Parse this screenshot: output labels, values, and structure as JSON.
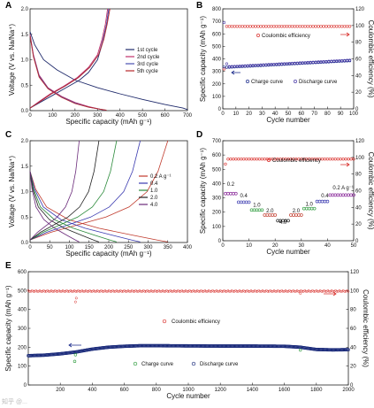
{
  "panels": {
    "A": "A",
    "B": "B",
    "C": "C",
    "D": "D",
    "E": "E"
  },
  "watermark": "知乎 @...",
  "chart_data": [
    {
      "panel": "A",
      "type": "line",
      "xlabel": "Specific capacity (mAh g⁻¹)",
      "ylabel": "Voltage (V vs. Na/Na⁺)",
      "xlim": [
        0,
        700
      ],
      "ylim": [
        0,
        2.0
      ],
      "xticks": [
        0,
        100,
        200,
        300,
        400,
        500,
        600,
        700
      ],
      "yticks": [
        0.0,
        0.5,
        1.0,
        1.5,
        2.0
      ],
      "legend_position": "right",
      "series": [
        {
          "name": "1st cycle",
          "color": "#1f2a6b",
          "discharge": [
            [
              0,
              1.55
            ],
            [
              20,
              1.3
            ],
            [
              60,
              1.0
            ],
            [
              120,
              0.8
            ],
            [
              200,
              0.6
            ],
            [
              300,
              0.45
            ],
            [
              400,
              0.33
            ],
            [
              500,
              0.22
            ],
            [
              600,
              0.12
            ],
            [
              680,
              0.05
            ],
            [
              700,
              0.02
            ]
          ],
          "charge": [
            [
              0,
              0.05
            ],
            [
              40,
              0.15
            ],
            [
              100,
              0.3
            ],
            [
              160,
              0.45
            ],
            [
              220,
              0.6
            ],
            [
              260,
              0.75
            ],
            [
              300,
              1.0
            ],
            [
              320,
              1.3
            ],
            [
              340,
              1.7
            ],
            [
              350,
              2.0
            ]
          ]
        },
        {
          "name": "2nd cycle",
          "color": "#c0306a",
          "discharge": [
            [
              0,
              1.5
            ],
            [
              15,
              1.1
            ],
            [
              40,
              0.7
            ],
            [
              80,
              0.45
            ],
            [
              140,
              0.28
            ],
            [
              200,
              0.16
            ],
            [
              260,
              0.08
            ],
            [
              300,
              0.04
            ],
            [
              330,
              0.01
            ]
          ],
          "charge": [
            [
              0,
              0.05
            ],
            [
              40,
              0.18
            ],
            [
              90,
              0.33
            ],
            [
              150,
              0.48
            ],
            [
              210,
              0.65
            ],
            [
              260,
              0.85
            ],
            [
              300,
              1.1
            ],
            [
              320,
              1.4
            ],
            [
              335,
              1.7
            ],
            [
              345,
              2.0
            ]
          ]
        },
        {
          "name": "3rd cycle",
          "color": "#4a4fb0",
          "discharge": [
            [
              0,
              1.48
            ],
            [
              15,
              1.08
            ],
            [
              40,
              0.68
            ],
            [
              80,
              0.44
            ],
            [
              140,
              0.27
            ],
            [
              200,
              0.15
            ],
            [
              260,
              0.07
            ],
            [
              310,
              0.03
            ],
            [
              335,
              0.01
            ]
          ],
          "charge": [
            [
              0,
              0.05
            ],
            [
              45,
              0.18
            ],
            [
              95,
              0.33
            ],
            [
              155,
              0.48
            ],
            [
              215,
              0.65
            ],
            [
              265,
              0.85
            ],
            [
              305,
              1.1
            ],
            [
              325,
              1.4
            ],
            [
              340,
              1.7
            ],
            [
              350,
              2.0
            ]
          ]
        },
        {
          "name": "5th cycle",
          "color": "#b8282c",
          "discharge": [
            [
              0,
              1.47
            ],
            [
              15,
              1.06
            ],
            [
              40,
              0.66
            ],
            [
              80,
              0.43
            ],
            [
              140,
              0.26
            ],
            [
              200,
              0.14
            ],
            [
              260,
              0.07
            ],
            [
              310,
              0.03
            ],
            [
              340,
              0.01
            ]
          ],
          "charge": [
            [
              0,
              0.05
            ],
            [
              45,
              0.18
            ],
            [
              95,
              0.33
            ],
            [
              155,
              0.48
            ],
            [
              215,
              0.65
            ],
            [
              265,
              0.85
            ],
            [
              305,
              1.1
            ],
            [
              328,
              1.4
            ],
            [
              343,
              1.7
            ],
            [
              355,
              2.0
            ]
          ]
        }
      ]
    },
    {
      "panel": "B",
      "type": "scatter",
      "xlabel": "Cycle number",
      "ylabel": "Specific capacity (mAh g⁻¹)",
      "ylabel2": "Coulombic efficiency (%)",
      "xlim": [
        0,
        100
      ],
      "ylim": [
        0,
        800
      ],
      "y2lim": [
        0,
        120
      ],
      "xticks": [
        0,
        10,
        20,
        30,
        40,
        50,
        60,
        70,
        80,
        90,
        100
      ],
      "yticks": [
        0,
        100,
        200,
        300,
        400,
        500,
        600,
        700,
        800
      ],
      "y2ticks": [
        0,
        20,
        40,
        60,
        80,
        100,
        120
      ],
      "annotations": [
        "Coulombic efficiency"
      ],
      "series": [
        {
          "name": "Coulombic efficiency",
          "axis": "right",
          "color": "#d9302c",
          "marker": "open-circle",
          "x_start": 1,
          "x_end": 98,
          "values_summary": {
            "first": 48,
            "rest": 99
          }
        },
        {
          "name": "Charge curve",
          "axis": "left",
          "color": "#1a2a8a",
          "marker": "open-circle",
          "x_start": 1,
          "x_end": 98,
          "values_summary": {
            "first": 335,
            "min": 330,
            "end": 385
          }
        },
        {
          "name": "Discharge curve",
          "axis": "left",
          "color": "#4a3aa8",
          "marker": "open-circle",
          "x_start": 1,
          "x_end": 98,
          "values_summary": {
            "first": 690,
            "second": 360,
            "min": 335,
            "end": 390
          }
        }
      ]
    },
    {
      "panel": "C",
      "type": "line",
      "xlabel": "Specific capacity (mAh g⁻¹)",
      "ylabel": "Voltage (V vs. Na/Na⁺)",
      "xlim": [
        0,
        400
      ],
      "ylim": [
        0,
        2.0
      ],
      "xticks": [
        0,
        50,
        100,
        150,
        200,
        250,
        300,
        350,
        400
      ],
      "yticks": [
        0.0,
        0.5,
        1.0,
        1.5,
        2.0
      ],
      "legend_position": "right",
      "series": [
        {
          "name": "0.2 A g⁻¹",
          "color": "#c03a2c",
          "capacity": 350
        },
        {
          "name": "0.4",
          "color": "#3a3ab0",
          "capacity": 280
        },
        {
          "name": "1.0",
          "color": "#2a8a3a",
          "capacity": 220
        },
        {
          "name": "2.0",
          "color": "#222222",
          "capacity": 175
        },
        {
          "name": "4.0",
          "color": "#6a2a7a",
          "capacity": 125
        }
      ]
    },
    {
      "panel": "D",
      "type": "scatter",
      "xlabel": "Cycle number",
      "ylabel": "Specific capacity (mAh g⁻¹)",
      "ylabel2": "Coulombic efficiency (%)",
      "xlim": [
        0,
        50
      ],
      "ylim": [
        0,
        700
      ],
      "y2lim": [
        0,
        120
      ],
      "xticks": [
        0,
        10,
        20,
        30,
        40,
        50
      ],
      "yticks": [
        0,
        100,
        200,
        300,
        400,
        500,
        600,
        700
      ],
      "y2ticks": [
        0,
        20,
        40,
        60,
        80,
        100,
        120
      ],
      "annotations": [
        "Coulombic efficiency"
      ],
      "rate_labels": [
        {
          "text": "0.2",
          "x": 3,
          "y": 385
        },
        {
          "text": "0.4",
          "x": 8,
          "y": 305
        },
        {
          "text": "1.0",
          "x": 13,
          "y": 238
        },
        {
          "text": "2.0",
          "x": 18,
          "y": 198
        },
        {
          "text": "4.0",
          "x": 23,
          "y": 118
        },
        {
          "text": "2.0",
          "x": 28,
          "y": 198
        },
        {
          "text": "1.0",
          "x": 33,
          "y": 245
        },
        {
          "text": "0.4",
          "x": 39,
          "y": 305
        },
        {
          "text": "0.2 A g⁻¹",
          "x": 46,
          "y": 360
        }
      ],
      "segments": [
        {
          "cycles": [
            1,
            5
          ],
          "capacity": 330,
          "color": "#8a2a9a"
        },
        {
          "cycles": [
            6,
            10
          ],
          "capacity": 270,
          "color": "#3a3ab0"
        },
        {
          "cycles": [
            11,
            15
          ],
          "capacity": 215,
          "color": "#2a9a3a"
        },
        {
          "cycles": [
            16,
            20
          ],
          "capacity": 180,
          "color": "#c03a2c"
        },
        {
          "cycles": [
            21,
            25
          ],
          "capacity": 140,
          "color": "#222222"
        },
        {
          "cycles": [
            26,
            30
          ],
          "capacity": 180,
          "color": "#c03a2c"
        },
        {
          "cycles": [
            31,
            35
          ],
          "capacity": 225,
          "color": "#2a9a3a"
        },
        {
          "cycles": [
            36,
            40
          ],
          "capacity": 275,
          "color": "#3a3ab0"
        },
        {
          "cycles": [
            41,
            50
          ],
          "capacity": 320,
          "color": "#8a2a9a"
        }
      ],
      "coulombic": {
        "first": 92,
        "rest": 98,
        "color": "#d9302c"
      }
    },
    {
      "panel": "E",
      "type": "scatter",
      "xlabel": "Cycle number",
      "ylabel": "Specific capacity (mAh g⁻¹)",
      "ylabel2": "Coulombic efficiency (%)",
      "xlim": [
        0,
        2000
      ],
      "ylim": [
        0,
        600
      ],
      "y2lim": [
        0,
        120
      ],
      "xticks": [
        200,
        400,
        600,
        800,
        1000,
        1200,
        1400,
        1600,
        1800,
        2000
      ],
      "yticks": [
        0,
        100,
        200,
        300,
        400,
        500,
        600
      ],
      "y2ticks": [
        0,
        20,
        40,
        60,
        80,
        100,
        120
      ],
      "annotations": [
        "Coulombic efficiency",
        "Charge curve",
        "Discharge curve"
      ],
      "series": [
        {
          "name": "Coulombic efficiency",
          "axis": "right",
          "color": "#d9302c",
          "value": 99.5
        },
        {
          "name": "Discharge curve",
          "axis": "left",
          "color": "#1a2a7a",
          "points": [
            [
              0,
              155
            ],
            [
              100,
              158
            ],
            [
              200,
              165
            ],
            [
              300,
              175
            ],
            [
              400,
              190
            ],
            [
              500,
              200
            ],
            [
              600,
              205
            ],
            [
              700,
              208
            ],
            [
              800,
              208
            ],
            [
              1000,
              207
            ],
            [
              1200,
              206
            ],
            [
              1400,
              206
            ],
            [
              1600,
              205
            ],
            [
              1700,
              200
            ],
            [
              1800,
              188
            ],
            [
              1900,
              186
            ],
            [
              2000,
              187
            ]
          ]
        },
        {
          "name": "Charge curve",
          "axis": "left",
          "color": "#2a9a3a",
          "outliers": [
            [
              290,
              125
            ],
            [
              295,
              160
            ],
            [
              1700,
              185
            ]
          ]
        }
      ]
    }
  ]
}
